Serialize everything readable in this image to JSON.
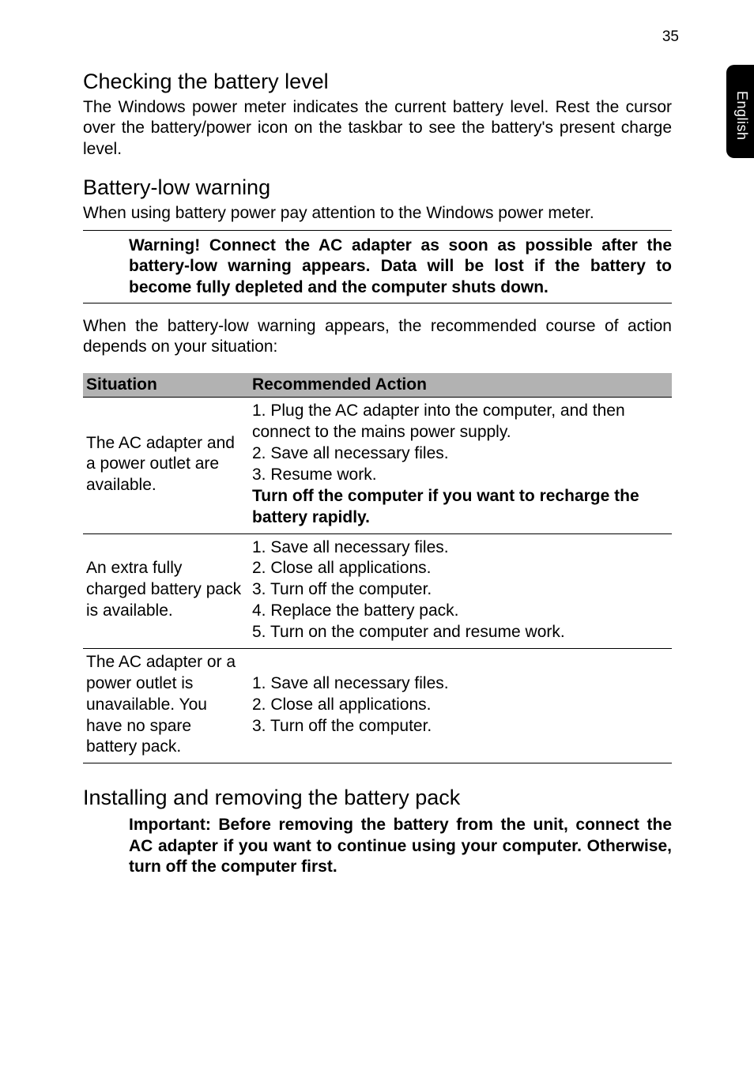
{
  "page_number": "35",
  "side_tab": "English",
  "sections": {
    "check_battery": {
      "title": "Checking the battery level",
      "body": "The Windows power meter indicates the current battery level. Rest the cursor over the battery/power icon on the taskbar to see the battery's present charge level."
    },
    "battery_low": {
      "title": "Battery-low warning",
      "intro": "When using battery power pay attention to the Windows power meter.",
      "warning": "Warning! Connect the AC adapter as soon as possible after the battery-low warning appears. Data will be lost if the battery to become fully depleted and the computer shuts down.",
      "after_warning": "When the battery-low warning appears, the recommended course of action depends on your situation:"
    },
    "table": {
      "headers": {
        "c1": "Situation",
        "c2": "Recommended Action"
      },
      "row1": {
        "situation": "The AC adapter and a power outlet are available.",
        "a1": "1. Plug the AC adapter into the computer, and then connect to the mains power supply.",
        "a2": "2. Save all necessary files.",
        "a3": "3. Resume work.",
        "a4": "Turn off the computer if you want to recharge the battery rapidly."
      },
      "row2": {
        "situation": "An extra fully charged battery pack is available.",
        "a1": "1. Save all necessary files.",
        "a2": "2. Close all applications.",
        "a3": "3. Turn off the computer.",
        "a4": "4. Replace the battery pack.",
        "a5": "5. Turn on the computer and resume work."
      },
      "row3": {
        "situation": "The AC adapter or a power outlet is unavailable. You have no spare battery pack.",
        "a1": "1. Save all necessary files.",
        "a2": "2. Close all applications.",
        "a3": "3. Turn off the computer."
      }
    },
    "install_remove": {
      "title": "Installing and removing the battery pack",
      "important": "Important: Before removing the battery from the unit, connect the AC adapter if you want to continue using your computer. Otherwise, turn off the computer first."
    }
  }
}
